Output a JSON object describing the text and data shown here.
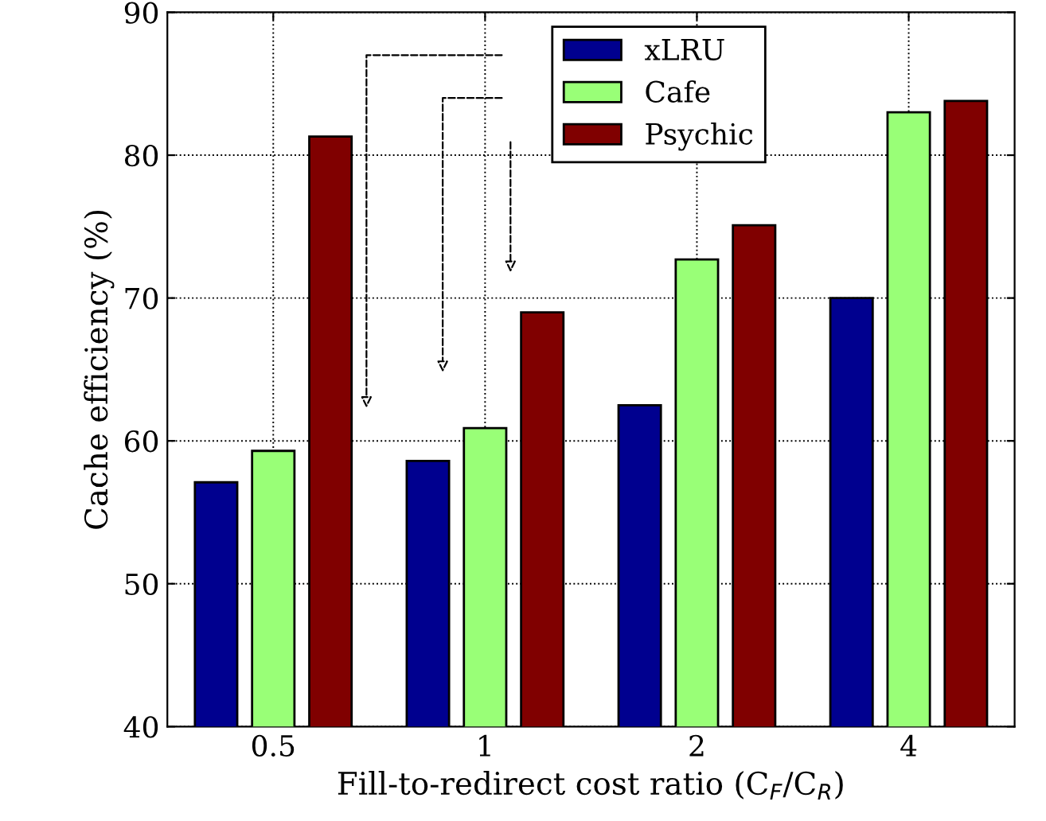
{
  "chart_data": {
    "type": "bar",
    "xlabel": "Fill-to-redirect cost ratio (C$_{F}$/C$_{R}$)",
    "ylabel": "Cache efficiency (%)",
    "categories": [
      "0.5",
      "1",
      "2",
      "4"
    ],
    "series": [
      {
        "name": "xLRU",
        "color": "#00008f",
        "values": [
          57.1,
          58.6,
          62.5,
          70.0
        ]
      },
      {
        "name": "Cafe",
        "color": "#99ff77",
        "values": [
          59.3,
          60.9,
          72.7,
          83.0
        ]
      },
      {
        "name": "Psychic",
        "color": "#800000",
        "values": [
          81.3,
          69.0,
          75.1,
          83.8
        ]
      }
    ],
    "ylim": [
      40,
      90
    ],
    "yticks": [
      40,
      50,
      60,
      70,
      80,
      90
    ],
    "grid": true,
    "legend": "top"
  }
}
